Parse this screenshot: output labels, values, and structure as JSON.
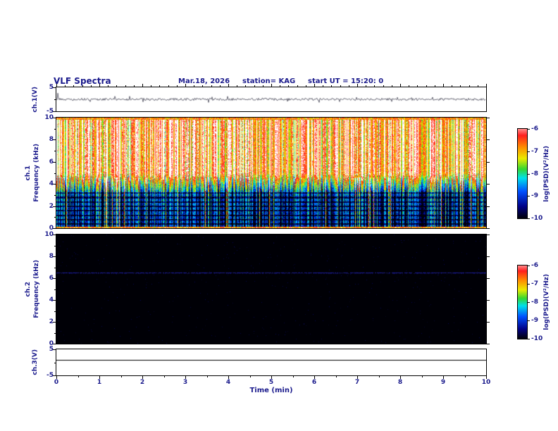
{
  "header": {
    "title": "VLF Spectra",
    "date": "Mar.18, 2026",
    "station": "station= KAG",
    "start_ut": "start UT =  15:20: 0"
  },
  "axes": {
    "x": {
      "label": "Time (min)",
      "range": [
        0,
        10
      ],
      "ticks": [
        0,
        1,
        2,
        3,
        4,
        5,
        6,
        7,
        8,
        9,
        10
      ]
    },
    "freq": {
      "label": "Frequency (kHz)",
      "range": [
        0,
        10
      ],
      "ticks": [
        0,
        2,
        4,
        6,
        8,
        10
      ]
    },
    "volt": {
      "range": [
        -5,
        5
      ],
      "max_label": "5",
      "min_label": "-5"
    }
  },
  "panels": {
    "ch1_wave": {
      "ylabel": "ch.1(V)",
      "ymax_label": "5",
      "ymin_label": "-5"
    },
    "ch1_spec": {
      "channel": "ch.1",
      "ylabel": "Frequency (kHz)"
    },
    "ch2_spec": {
      "channel": "ch.2",
      "ylabel": "Frequency (kHz)"
    },
    "ch3_wave": {
      "ylabel": "ch.3(V)",
      "ymax_label": "5",
      "ymin_label": "-5"
    }
  },
  "colorbars": [
    {
      "label": "log(PSD)(V²/Hz)",
      "ticks": [
        "-6",
        "-7",
        "-8",
        "-9",
        "-10"
      ]
    },
    {
      "label": "log(PSD)(V²/Hz)",
      "ticks": [
        "-6",
        "-7",
        "-8",
        "-9",
        "-10"
      ]
    }
  ],
  "colors": {
    "text": "#1a1a8c",
    "axis": "#000000",
    "background": "#ffffff",
    "colormap_top": "#ff1e1e",
    "colormap_bottom": "#00000c"
  },
  "chart_data": [
    {
      "type": "line",
      "panel": "ch1_wave",
      "ylabel": "ch.1(V)",
      "ylim": [
        -5,
        5
      ],
      "xlim": [
        0,
        10
      ],
      "signal": "dense broadband noise trace oscillating tightly around 0 V for the full 10 minutes, small spikes of roughly ±1 V, larger excursion at t=0"
    },
    {
      "type": "heatmap",
      "panel": "ch1_spec",
      "ylabel": "ch.1 Frequency (kHz)",
      "ylim": [
        0,
        10
      ],
      "xlim": [
        0,
        10
      ],
      "clim_log_psd": [
        -10,
        -6
      ],
      "content": "intense broadband impulsive VLF noise: above ~5 kHz PSD ~ -6.5 to -6 (red, with saturated white vertical stripes); 3.5-5 kHz ~ -7.5 to -8.5 (orange/yellow/green transition band); below ~3.5 kHz ~ -9 to -10 (blue/black) crossed by bright green-yellow vertical streaks and dark horizontal harmonic rows every ~0.4 kHz; thin bright lines along the 0 and 10 kHz edges"
    },
    {
      "type": "heatmap",
      "panel": "ch2_spec",
      "ylabel": "ch.2 Frequency (kHz)",
      "ylim": [
        0,
        10
      ],
      "xlim": [
        0,
        10
      ],
      "clim_log_psd": [
        -10,
        -6
      ],
      "content": "near the noise floor (~ -10, black) at all frequencies and times, with sparse faint dark-blue speckles",
      "line_khz": 6.5,
      "line_log_psd": -9
    },
    {
      "type": "line",
      "panel": "ch3_wave",
      "ylabel": "ch.3(V)",
      "ylim": [
        -5,
        5
      ],
      "xlim": [
        0,
        10
      ],
      "signal": "perfectly flat constant trace across the full record",
      "value_v": 1
    }
  ]
}
